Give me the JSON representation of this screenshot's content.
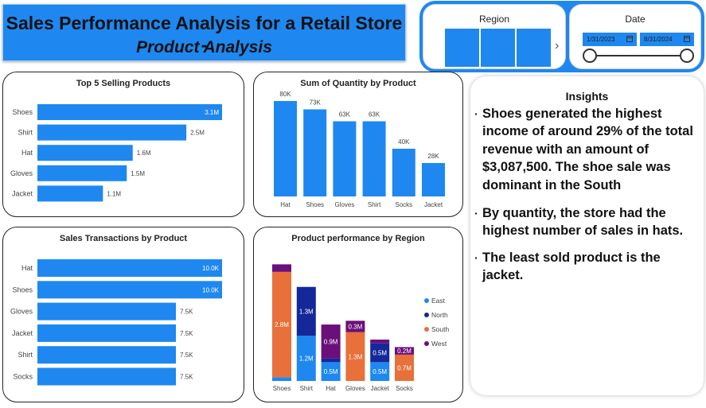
{
  "header": {
    "title_line1": "Sales Performance Analysis for a Retail Store -",
    "title_line2": "Product Analysis"
  },
  "slicers": {
    "region": {
      "title": "Region"
    },
    "date": {
      "title": "Date",
      "start": "1/31/2023",
      "end": "8/31/2024"
    }
  },
  "colors": {
    "accent": "#1e88f0",
    "east": "#1e88f0",
    "north": "#14289a",
    "south": "#e8703a",
    "west": "#6b0f7a"
  },
  "insights": {
    "title": "Insights",
    "points": [
      "Shoes generated the highest income of around 29% of the total revenue with an amount of $3,087,500. The shoe sale was dominant in the South",
      "By quantity, the store had the highest number of sales in hats.",
      "The least sold product is the jacket."
    ]
  },
  "chart_data": [
    {
      "type": "bar",
      "orientation": "horizontal",
      "title": "Top 5 Selling Products",
      "categories": [
        "Shoes",
        "Shirt",
        "Hat",
        "Gloves",
        "Jacket"
      ],
      "values": [
        3.1,
        2.5,
        1.6,
        1.5,
        1.1
      ],
      "labels": [
        "3.1M",
        "2.5M",
        "1.6M",
        "1.5M",
        "1.1M"
      ],
      "unit": "M"
    },
    {
      "type": "bar",
      "orientation": "vertical",
      "title": "Sum of Quantity by Product",
      "categories": [
        "Hat",
        "Shoes",
        "Gloves",
        "Shirt",
        "Socks",
        "Jacket"
      ],
      "values": [
        80,
        73,
        63,
        63,
        40,
        28
      ],
      "labels": [
        "80K",
        "73K",
        "63K",
        "63K",
        "40K",
        "28K"
      ],
      "unit": "K"
    },
    {
      "type": "bar",
      "orientation": "horizontal",
      "title": "Sales Transactions by Product",
      "categories": [
        "Hat",
        "Shoes",
        "Gloves",
        "Jacket",
        "Shirt",
        "Socks"
      ],
      "values": [
        10.0,
        10.0,
        7.5,
        7.5,
        7.5,
        7.5
      ],
      "labels": [
        "10.0K",
        "10.0K",
        "7.5K",
        "7.5K",
        "7.5K",
        "7.5K"
      ],
      "unit": "K"
    },
    {
      "type": "bar",
      "orientation": "vertical",
      "stacked": true,
      "title": "Product performance by Region",
      "categories": [
        "Shoes",
        "Shirt",
        "Hat",
        "Gloves",
        "Jacket",
        "Socks"
      ],
      "legend_position": "right",
      "series": [
        {
          "name": "East",
          "values": [
            0.1,
            1.2,
            0.5,
            0.0,
            0.5,
            0.0
          ],
          "labels": [
            "",
            "1.2M",
            "0.5M",
            "",
            "0.5M",
            ""
          ]
        },
        {
          "name": "North",
          "values": [
            0.0,
            1.3,
            0.1,
            0.0,
            0.5,
            0.0
          ],
          "labels": [
            "",
            "1.3M",
            "",
            "",
            "0.5M",
            ""
          ]
        },
        {
          "name": "South",
          "values": [
            2.8,
            0.0,
            0.0,
            1.3,
            0.0,
            0.7
          ],
          "labels": [
            "2.8M",
            "",
            "",
            "1.3M",
            "",
            "0.7M"
          ]
        },
        {
          "name": "West",
          "values": [
            0.2,
            0.0,
            0.9,
            0.3,
            0.1,
            0.2
          ],
          "labels": [
            "",
            "",
            "0.9M",
            "0.3M",
            "",
            "0.2M"
          ]
        }
      ]
    }
  ]
}
